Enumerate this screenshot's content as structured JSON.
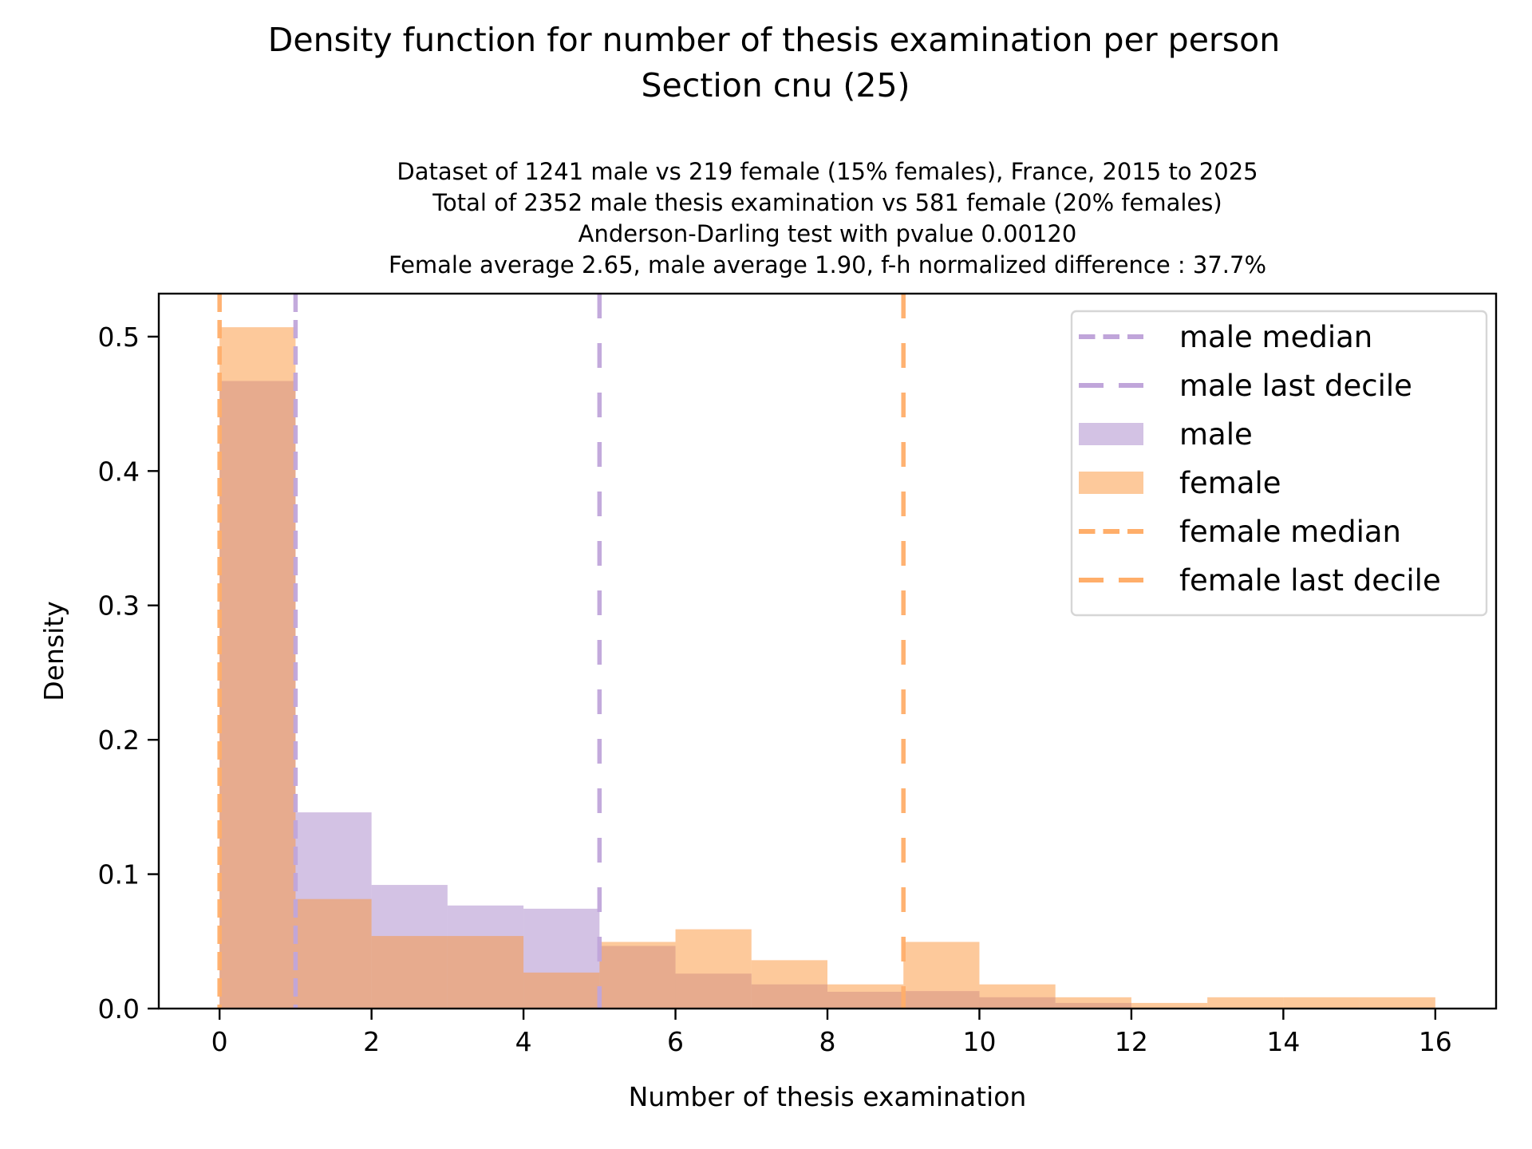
{
  "chart_data": {
    "type": "bar",
    "subtype": "overlaid-density-histogram",
    "title": "Density function for number of thesis examination per person",
    "title_line2": "Section cnu (25)",
    "subtitle_lines": [
      "Dataset of 1241 male vs 219 female (15% females), France, 2015 to 2025",
      "Total of 2352 male thesis examination vs 581 female (20% females)",
      "Anderson-Darling test with pvalue 0.00120",
      "Female average 2.65, male average 1.90, f-h normalized difference : 37.7%"
    ],
    "xlabel": "Number of thesis examination",
    "ylabel": "Density",
    "xlim": [
      -0.8,
      16.8
    ],
    "ylim": [
      0,
      0.532
    ],
    "xticks": [
      0,
      2,
      4,
      6,
      8,
      10,
      12,
      14,
      16
    ],
    "xtick_labels": [
      "0",
      "2",
      "4",
      "6",
      "8",
      "10",
      "12",
      "14",
      "16"
    ],
    "yticks": [
      0.0,
      0.1,
      0.2,
      0.3,
      0.4,
      0.5
    ],
    "ytick_labels": [
      "0.0",
      "0.1",
      "0.2",
      "0.3",
      "0.4",
      "0.5"
    ],
    "grid": false,
    "bin_edges": [
      0,
      1,
      2,
      3,
      4,
      5,
      6,
      7,
      8,
      9,
      10,
      11,
      12,
      13,
      14,
      15,
      16
    ],
    "series": [
      {
        "name": "male",
        "color": "#a785c9",
        "opacity": 0.5,
        "values": [
          0.467,
          0.146,
          0.092,
          0.0767,
          0.0743,
          0.0466,
          0.026,
          0.018,
          0.0125,
          0.013,
          0.0084,
          0.0042,
          0,
          0,
          0,
          0
        ]
      },
      {
        "name": "female",
        "color": "#fb9337",
        "opacity": 0.5,
        "values": [
          0.507,
          0.0815,
          0.054,
          0.054,
          0.0268,
          0.0496,
          0.059,
          0.036,
          0.018,
          0.0496,
          0.018,
          0.0084,
          0.0042,
          0.0084,
          0.0084,
          0.0084
        ]
      }
    ],
    "vlines": [
      {
        "name": "male median",
        "x": 1,
        "color": "#c0a5da",
        "style": "dashed"
      },
      {
        "name": "male last decile",
        "x": 5,
        "color": "#c0a5da",
        "style": "long-dashed"
      },
      {
        "name": "female median",
        "x": 0,
        "color": "#ffae6a",
        "style": "dashed"
      },
      {
        "name": "female last decile",
        "x": 9,
        "color": "#ffae6a",
        "style": "long-dashed"
      }
    ],
    "legend": {
      "placement": "top-right",
      "entries": [
        {
          "label": "male median",
          "kind": "dashed",
          "color": "#c0a5da"
        },
        {
          "label": "male last decile",
          "kind": "long-dashed",
          "color": "#c0a5da"
        },
        {
          "label": "male",
          "kind": "patch",
          "color": "#d3c2e4"
        },
        {
          "label": "female",
          "kind": "patch",
          "color": "#fdc99b"
        },
        {
          "label": "female median",
          "kind": "dashed",
          "color": "#ffae6a"
        },
        {
          "label": "female last decile",
          "kind": "long-dashed",
          "color": "#ffae6a"
        }
      ]
    }
  }
}
